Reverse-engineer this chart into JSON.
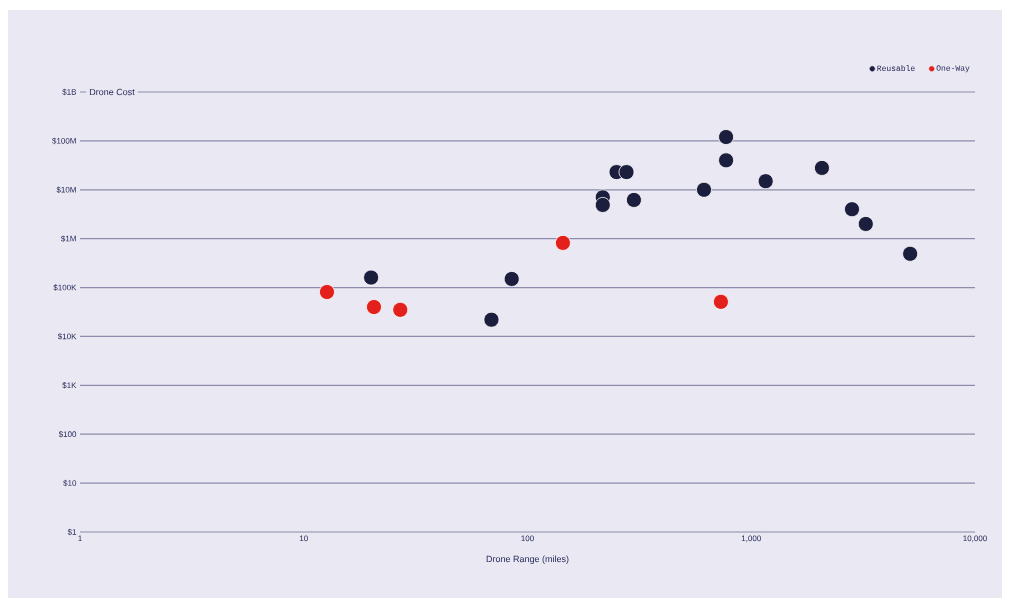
{
  "chart_data": {
    "type": "scatter",
    "xlabel": "Drone Range (miles)",
    "ylabel": "Drone Cost",
    "log": "xy",
    "grid": "y",
    "legend": "top right",
    "marker": "circle",
    "xlim": [
      1,
      10000
    ],
    "ylim": [
      1,
      1000000000
    ],
    "xticks": [
      1,
      10,
      100,
      {
        "value": 1000,
        "label": "1,000"
      },
      {
        "value": 10000,
        "label": "10,000"
      }
    ],
    "yticks": [
      {
        "value": 1,
        "label": "$1"
      },
      {
        "value": 10,
        "label": "$10"
      },
      {
        "value": 100,
        "label": "$100"
      },
      {
        "value": 1000,
        "label": "$1K"
      },
      {
        "value": 10000,
        "label": "$10K"
      },
      {
        "value": 100000,
        "label": "$100K"
      },
      {
        "value": 1000000,
        "label": "$1M"
      },
      {
        "value": 10000000,
        "label": "$10M"
      },
      {
        "value": 100000000,
        "label": "$100M"
      },
      {
        "value": 1000000000,
        "label": "$1B"
      }
    ],
    "series": [
      {
        "name": "Reusable",
        "color": "#1b1e3d",
        "x": [
          20,
          69,
          85,
          217,
          217,
          250,
          277,
          299,
          615,
          772,
          772,
          1160,
          2070,
          2820,
          3250,
          5130
        ],
        "values": [
          160000,
          22000,
          150000,
          7000000,
          4900000,
          23000000,
          23000000,
          6200000,
          10000000,
          120000000,
          40000000,
          15000000,
          28000000,
          4000000,
          2000000,
          490000
        ]
      },
      {
        "name": "One-Way",
        "color": "#e3201b",
        "x": [
          12.7,
          20.6,
          27,
          144,
          732
        ],
        "values": [
          81000,
          40000,
          35000,
          820000,
          51000
        ]
      }
    ]
  }
}
